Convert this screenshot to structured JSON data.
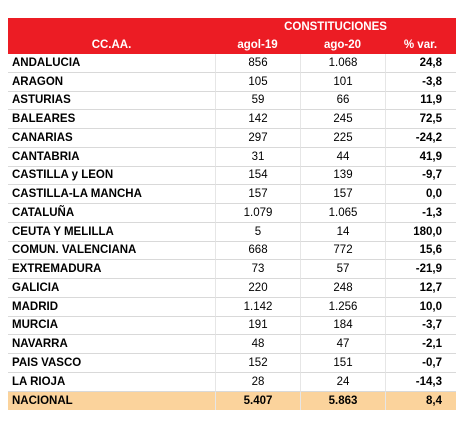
{
  "header": {
    "group": "CONSTITUCIONES",
    "columns": [
      "CC.AA.",
      "agol-19",
      "ago-20",
      "% var."
    ]
  },
  "table": {
    "rows": [
      [
        "ANDALUCIA",
        "856",
        "1.068",
        "24,8"
      ],
      [
        "ARAGON",
        "105",
        "101",
        "-3,8"
      ],
      [
        "ASTURIAS",
        "59",
        "66",
        "11,9"
      ],
      [
        "BALEARES",
        "142",
        "245",
        "72,5"
      ],
      [
        "CANARIAS",
        "297",
        "225",
        "-24,2"
      ],
      [
        "CANTABRIA",
        "31",
        "44",
        "41,9"
      ],
      [
        "CASTILLA y LEON",
        "154",
        "139",
        "-9,7"
      ],
      [
        "CASTILLA-LA MANCHA",
        "157",
        "157",
        "0,0"
      ],
      [
        "CATALUÑA",
        "1.079",
        "1.065",
        "-1,3"
      ],
      [
        "CEUTA Y MELILLA",
        "5",
        "14",
        "180,0"
      ],
      [
        "COMUN. VALENCIANA",
        "668",
        "772",
        "15,6"
      ],
      [
        "EXTREMADURA",
        "73",
        "57",
        "-21,9"
      ],
      [
        "GALICIA",
        "220",
        "248",
        "12,7"
      ],
      [
        "MADRID",
        "1.142",
        "1.256",
        "10,0"
      ],
      [
        "MURCIA",
        "191",
        "184",
        "-3,7"
      ],
      [
        "NAVARRA",
        "48",
        "47",
        "-2,1"
      ],
      [
        "PAIS VASCO",
        "152",
        "151",
        "-0,7"
      ],
      [
        "LA RIOJA",
        "28",
        "24",
        "-14,3"
      ]
    ]
  },
  "total": [
    "NACIONAL",
    "5.407",
    "5.863",
    "8,4"
  ]
}
